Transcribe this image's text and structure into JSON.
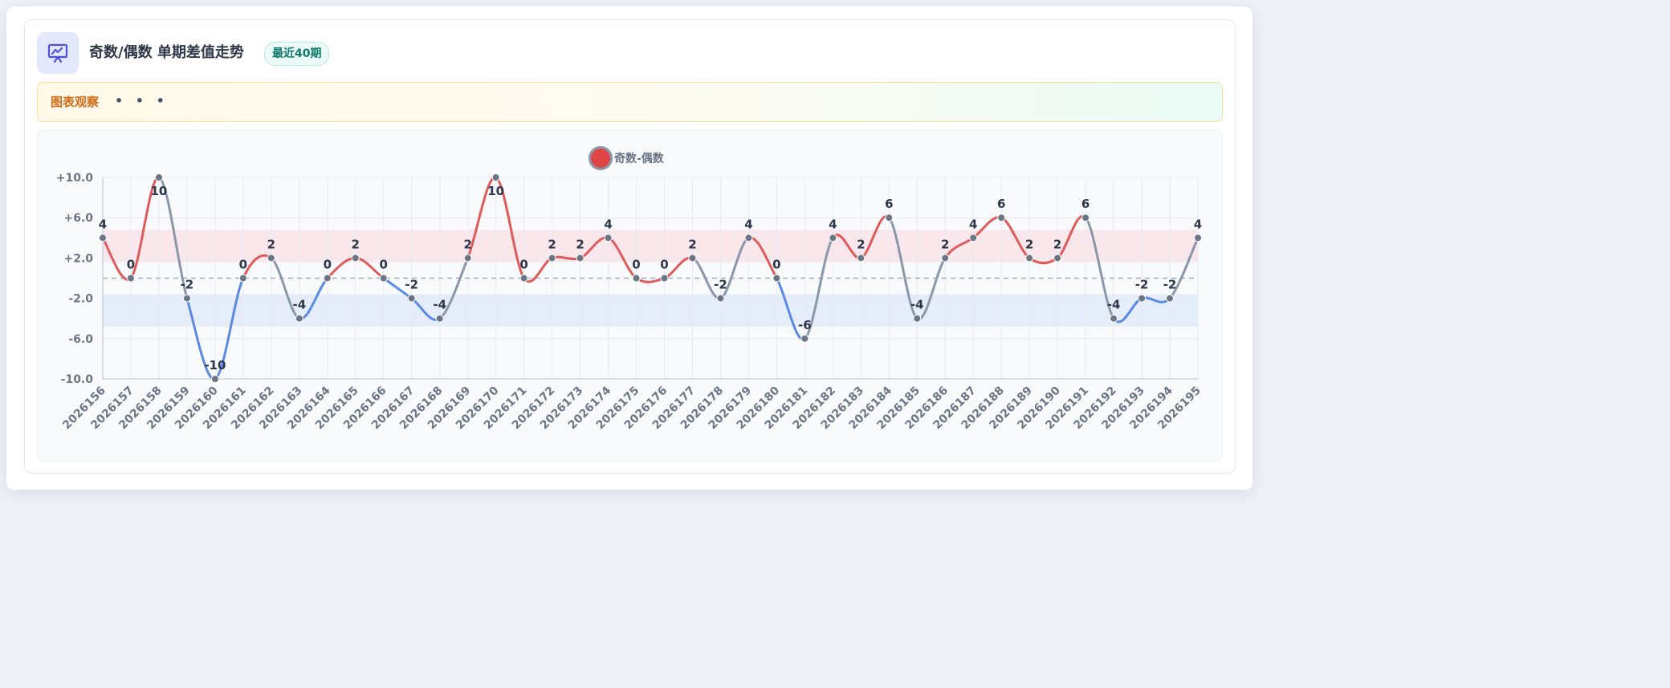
{
  "header": {
    "title": "奇数/偶数 单期差值走势",
    "badge": "最近40期",
    "icon": "presentation-chart-icon"
  },
  "observation": {
    "label": "图表观察",
    "dots": "• • •"
  },
  "colors": {
    "positive": "#e05a5a",
    "negative": "#5b8ae6",
    "neutral": "#8a97ab",
    "positive_band": "#fbe0e5",
    "negative_band": "#dfe8fb",
    "point": "#6b7585",
    "zero_line": "#a0aec0"
  },
  "chart_data": {
    "type": "line",
    "legend": {
      "name": "奇数-偶数",
      "placement": "top-center"
    },
    "x": [
      "2026156",
      "2026157",
      "2026158",
      "2026159",
      "2026160",
      "2026161",
      "2026162",
      "2026163",
      "2026164",
      "2026165",
      "2026166",
      "2026167",
      "2026168",
      "2026169",
      "2026170",
      "2026171",
      "2026172",
      "2026173",
      "2026174",
      "2026175",
      "2026176",
      "2026177",
      "2026178",
      "2026179",
      "2026180",
      "2026181",
      "2026182",
      "2026183",
      "2026184",
      "2026185",
      "2026186",
      "2026187",
      "2026188",
      "2026189",
      "2026190",
      "2026191",
      "2026192",
      "2026193",
      "2026194",
      "2026195"
    ],
    "series": [
      {
        "name": "奇数-偶数",
        "values": [
          4,
          0,
          10,
          -2,
          -10,
          0,
          2,
          -4,
          0,
          2,
          0,
          -2,
          -4,
          2,
          10,
          0,
          2,
          2,
          4,
          0,
          0,
          2,
          -2,
          4,
          0,
          -6,
          4,
          2,
          6,
          -4,
          2,
          4,
          6,
          2,
          2,
          6,
          -4,
          -2,
          -2,
          4
        ]
      }
    ],
    "yticks": [
      "+10.0",
      "+6.0",
      "+2.0",
      "-2.0",
      "-6.0",
      "-10.0"
    ],
    "ylim": [
      -10,
      10
    ],
    "bands": [
      {
        "from": 1.6,
        "to": 4.8,
        "kind": "positive"
      },
      {
        "from": -4.8,
        "to": -1.6,
        "kind": "negative"
      }
    ],
    "zero_line": true,
    "grid": true
  }
}
